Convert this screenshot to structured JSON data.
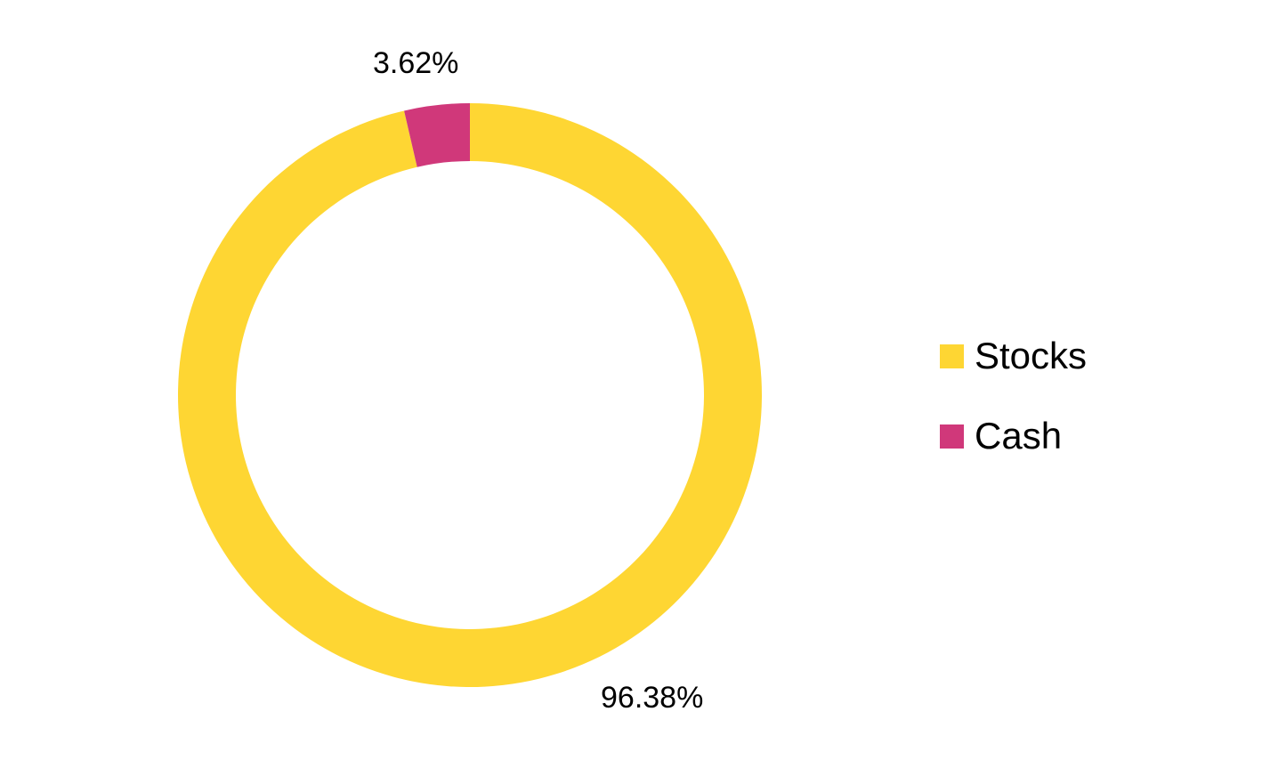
{
  "chart_data": {
    "type": "pie",
    "variant": "donut",
    "start_angle_deg": 0,
    "direction": "clockwise",
    "legend_position": "right",
    "categories": [
      "Stocks",
      "Cash"
    ],
    "values": [
      96.38,
      3.62
    ],
    "colors": [
      "#FED633",
      "#D0387A"
    ],
    "data_labels": [
      "96.38%",
      "3.62%"
    ]
  }
}
